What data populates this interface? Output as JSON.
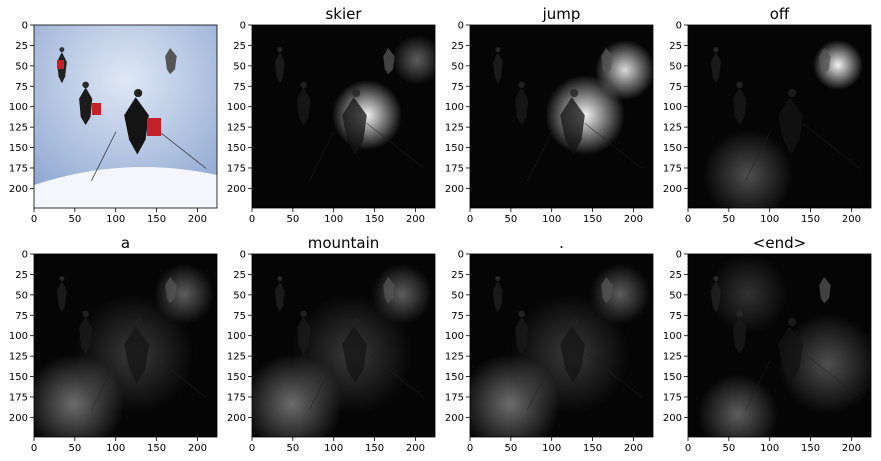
{
  "figure": {
    "panels": [
      {
        "title": "",
        "kind": "original"
      },
      {
        "title": "skier",
        "kind": "attention",
        "focus": "skier-right"
      },
      {
        "title": "jump",
        "kind": "attention",
        "focus": "skier-right-bright"
      },
      {
        "title": "off",
        "kind": "attention",
        "focus": "background-skier"
      },
      {
        "title": "a",
        "kind": "attention",
        "focus": "diffuse-bottom"
      },
      {
        "title": "mountain",
        "kind": "attention",
        "focus": "diffuse-bottom"
      },
      {
        "title": ".",
        "kind": "attention",
        "focus": "diffuse-bottom"
      },
      {
        "title": "<end>",
        "kind": "attention",
        "focus": "diffuse"
      }
    ],
    "x_ticks": [
      "0",
      "50",
      "100",
      "150",
      "200"
    ],
    "y_ticks": [
      "0",
      "25",
      "50",
      "75",
      "100",
      "125",
      "150",
      "175",
      "200"
    ]
  }
}
